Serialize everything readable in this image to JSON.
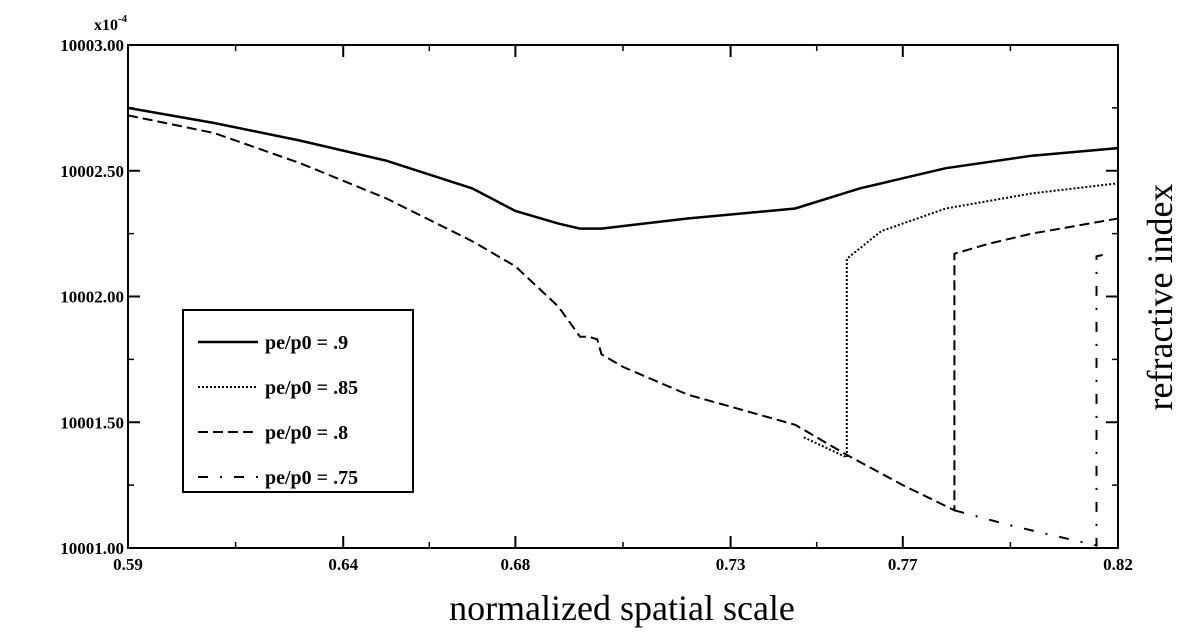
{
  "chart_data": {
    "type": "line",
    "xlabel": "normalized spatial scale",
    "ylabel": "refractive index",
    "y_multiplier_base": "x10",
    "y_multiplier_exp": "-4",
    "xlim": [
      0.59,
      0.82
    ],
    "ylim": [
      10001.0,
      10003.0
    ],
    "x_ticks": [
      0.59,
      0.64,
      0.68,
      0.73,
      0.77,
      0.82
    ],
    "x_tick_labels": [
      "0.59",
      "0.64",
      "0.68",
      "0.73",
      "0.77",
      "0.82"
    ],
    "y_ticks": [
      10001.0,
      10001.5,
      10002.0,
      10002.5,
      10003.0
    ],
    "y_tick_labels": [
      "10001.00",
      "10001.50",
      "10002.00",
      "10002.50",
      "10003.00"
    ],
    "legend_position": "left",
    "grid": false,
    "series": [
      {
        "name": "pe/p0 = .9",
        "dash": "solid",
        "x": [
          0.59,
          0.61,
          0.63,
          0.65,
          0.67,
          0.68,
          0.69,
          0.695,
          0.7,
          0.72,
          0.745,
          0.76,
          0.78,
          0.8,
          0.82
        ],
        "y": [
          10002.75,
          10002.69,
          10002.62,
          10002.54,
          10002.43,
          10002.34,
          10002.29,
          10002.27,
          10002.27,
          10002.31,
          10002.35,
          10002.43,
          10002.51,
          10002.56,
          10002.59
        ]
      },
      {
        "name": "pe/p0 = .85",
        "dash": "dotted",
        "x": [
          0.747,
          0.757,
          0.757,
          0.765,
          0.78,
          0.8,
          0.82
        ],
        "y": [
          10001.44,
          10001.36,
          10002.15,
          10002.26,
          10002.35,
          10002.41,
          10002.45
        ]
      },
      {
        "name": "pe/p0 = .8",
        "dash": "dashed",
        "x": [
          0.59,
          0.61,
          0.63,
          0.65,
          0.67,
          0.68,
          0.69,
          0.695,
          0.697,
          0.699,
          0.7,
          0.705,
          0.72,
          0.745,
          0.757,
          0.77,
          0.782,
          0.782,
          0.79,
          0.8,
          0.82
        ],
        "y": [
          10002.72,
          10002.65,
          10002.53,
          10002.39,
          10002.22,
          10002.12,
          10001.96,
          10001.84,
          10001.84,
          10001.83,
          10001.77,
          10001.72,
          10001.61,
          10001.49,
          10001.37,
          10001.25,
          10001.15,
          10002.17,
          10002.21,
          10002.25,
          10002.31
        ]
      },
      {
        "name": "pe/p0 = .75",
        "dash": "dashdot",
        "x": [
          0.782,
          0.795,
          0.81,
          0.815,
          0.815,
          0.818
        ],
        "y": [
          10001.15,
          10001.09,
          10001.03,
          10001.01,
          10002.16,
          10002.17
        ]
      }
    ]
  }
}
